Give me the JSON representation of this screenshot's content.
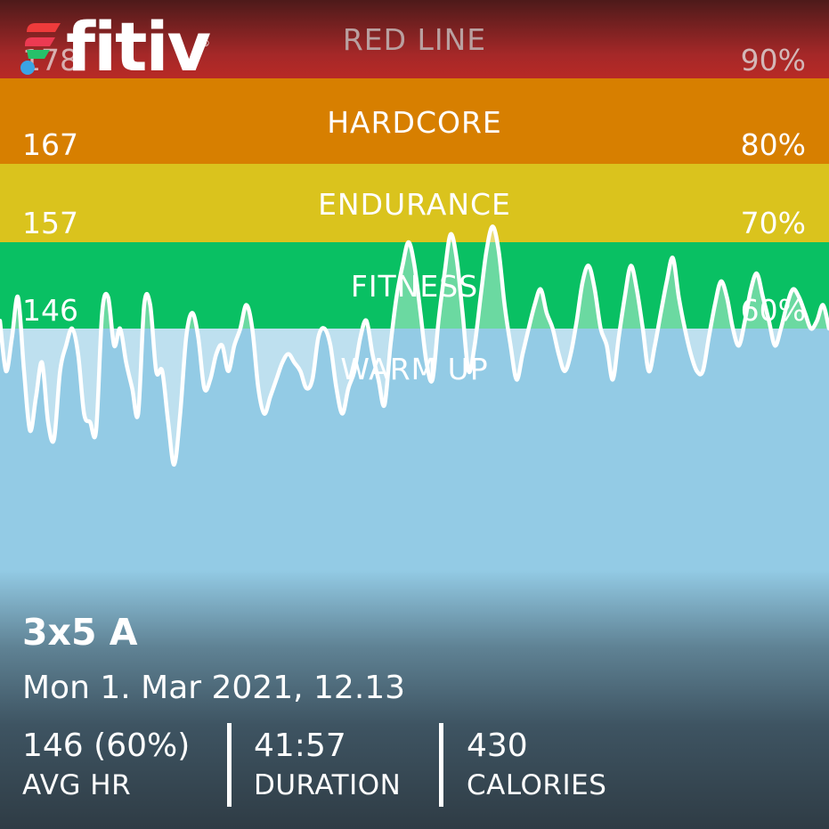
{
  "brand": {
    "name": "fitiv",
    "registered": "®"
  },
  "zones": {
    "redline": {
      "label": "RED LINE",
      "bpm": "178",
      "pct": "90%"
    },
    "hardcore": {
      "label": "HARDCORE",
      "bpm": "167",
      "pct": "80%"
    },
    "endurance": {
      "label": "ENDURANCE",
      "bpm": "157",
      "pct": "70%"
    },
    "fitness": {
      "label": "FITNESS",
      "bpm": "146",
      "pct": "60%"
    },
    "warmup": {
      "label": "WARM UP"
    }
  },
  "colors": {
    "redline": "#b82a26",
    "hardcore": "#d77f00",
    "endurance": "#dac31d",
    "fitness": "#09c063",
    "warmup": "#93cbe5",
    "line": "#ffffff"
  },
  "workout": {
    "title": "3x5 A",
    "date": "Mon 1. Mar 2021, 12.13"
  },
  "stats": {
    "avg_hr": {
      "value": "146 (60%)",
      "label": "AVG HR"
    },
    "duration": {
      "value": "41:57",
      "label": "DURATION"
    },
    "calories": {
      "value": "430",
      "label": "CALORIES"
    }
  },
  "chart_data": {
    "type": "line",
    "xlabel": "",
    "ylabel": "",
    "zone_thresholds_bpm": [
      146,
      157,
      167,
      178
    ],
    "x": [
      0,
      1,
      2,
      3,
      4,
      5,
      6,
      7,
      8,
      9,
      10,
      11,
      12,
      13,
      14,
      15,
      16,
      17,
      18,
      19,
      20,
      21,
      22,
      23,
      24,
      25,
      26,
      27,
      28,
      29,
      30,
      31,
      32,
      33,
      34,
      35,
      36,
      37,
      38,
      39,
      40,
      41,
      42,
      43,
      44,
      45,
      46,
      47,
      48,
      49,
      50,
      51,
      52,
      53,
      54,
      55,
      56,
      57,
      58,
      59,
      60,
      61,
      62,
      63,
      64,
      65,
      66,
      67,
      68,
      69,
      70,
      71,
      72,
      73,
      74,
      75,
      76,
      77,
      78,
      79,
      80,
      81,
      82,
      83,
      84,
      85,
      86,
      87,
      88,
      89,
      90,
      91,
      92,
      93,
      94,
      95,
      96,
      97,
      98,
      99,
      100,
      101,
      102,
      103,
      104,
      105,
      106,
      107,
      108,
      109,
      110,
      111,
      112,
      113,
      114,
      115,
      116,
      117,
      118,
      119,
      120,
      121,
      122,
      123,
      124,
      125,
      126,
      127,
      128,
      129,
      130,
      131,
      132,
      133,
      134,
      135,
      136,
      137,
      138
    ],
    "values": [
      147,
      141,
      145,
      150,
      141,
      134,
      138,
      142,
      135,
      133,
      141,
      144,
      146,
      143,
      136,
      135,
      134,
      148,
      150,
      144,
      146,
      142,
      139,
      136,
      149,
      149,
      141,
      141,
      135,
      130,
      136,
      145,
      148,
      145,
      139,
      140,
      143,
      144,
      141,
      144,
      146,
      149,
      146,
      139,
      136,
      138,
      140,
      142,
      143,
      142,
      141,
      139,
      140,
      145,
      146,
      144,
      139,
      136,
      139,
      141,
      145,
      147,
      143,
      140,
      137,
      144,
      150,
      154,
      157,
      154,
      148,
      142,
      140,
      147,
      153,
      158,
      155,
      148,
      141,
      144,
      150,
      156,
      159,
      156,
      149,
      144,
      140,
      143,
      146,
      149,
      151,
      148,
      146,
      143,
      141,
      143,
      147,
      152,
      154,
      151,
      146,
      144,
      140,
      145,
      150,
      154,
      151,
      146,
      141,
      144,
      148,
      152,
      155,
      150,
      146,
      143,
      141,
      141,
      145,
      149,
      152,
      150,
      146,
      144,
      147,
      151,
      153,
      150,
      147,
      144,
      146,
      149,
      151,
      150,
      148,
      146,
      147,
      149,
      146
    ]
  }
}
